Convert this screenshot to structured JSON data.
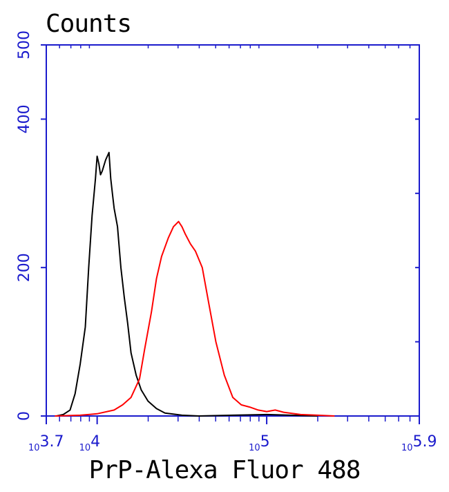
{
  "chart_data": {
    "type": "line",
    "ylabel": "Counts",
    "xlabel": "PrP-Alexa Fluor 488",
    "x_scale": "log10",
    "xlim_log10": [
      3.7,
      5.9
    ],
    "ylim": [
      0,
      500
    ],
    "y_ticks": [
      "0",
      "200",
      "400",
      "500"
    ],
    "x_ticks": [
      {
        "base": "10",
        "exp": "3.7",
        "log10": 3.7
      },
      {
        "base": "10",
        "exp": "4",
        "log10": 4.0
      },
      {
        "base": "10",
        "exp": "5",
        "log10": 5.0
      },
      {
        "base": "10",
        "exp": "5.9",
        "log10": 5.9
      }
    ],
    "axis_color": "#1a1acc",
    "series": [
      {
        "color": "#000000",
        "x_log10": [
          3.76,
          3.8,
          3.84,
          3.87,
          3.9,
          3.93,
          3.95,
          3.97,
          3.99,
          4.0,
          4.01,
          4.02,
          4.03,
          4.05,
          4.07,
          4.08,
          4.09,
          4.1,
          4.12,
          4.14,
          4.16,
          4.18,
          4.2,
          4.23,
          4.26,
          4.3,
          4.35,
          4.4,
          4.5,
          4.6,
          4.8,
          5.0,
          5.3
        ],
        "y": [
          0,
          2,
          8,
          30,
          70,
          120,
          200,
          270,
          320,
          350,
          340,
          325,
          330,
          345,
          355,
          320,
          300,
          280,
          255,
          200,
          160,
          125,
          85,
          55,
          35,
          20,
          10,
          4,
          1,
          0,
          1,
          2,
          0
        ]
      },
      {
        "color": "#ff0000",
        "x_log10": [
          3.75,
          3.9,
          4.0,
          4.1,
          4.15,
          4.2,
          4.25,
          4.28,
          4.32,
          4.35,
          4.38,
          4.42,
          4.45,
          4.48,
          4.5,
          4.52,
          4.55,
          4.58,
          4.62,
          4.66,
          4.7,
          4.75,
          4.8,
          4.85,
          4.9,
          4.95,
          5.0,
          5.05,
          5.1,
          5.2,
          5.3,
          5.4
        ],
        "y": [
          0,
          1,
          3,
          8,
          15,
          25,
          50,
          90,
          140,
          185,
          215,
          240,
          255,
          262,
          255,
          245,
          232,
          222,
          200,
          150,
          100,
          55,
          25,
          15,
          12,
          8,
          6,
          8,
          5,
          2,
          1,
          0
        ]
      }
    ]
  }
}
